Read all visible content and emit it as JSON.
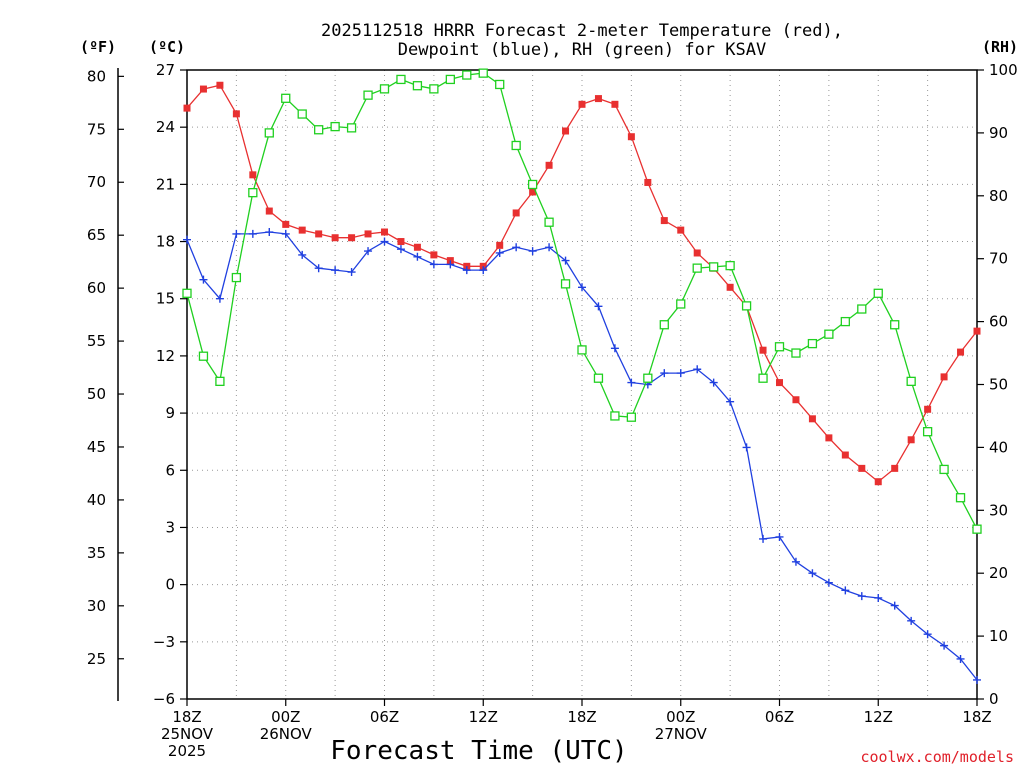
{
  "chart_data": {
    "type": "line",
    "title_lines": [
      "2025112518 HRRR Forecast 2-meter Temperature (red),",
      "Dewpoint (blue), RH (green) for KSAV"
    ],
    "xlabel": "Forecast Time (UTC)",
    "credit": "coolwx.com/models",
    "units": {
      "fahrenheit": "(ºF)",
      "celsius": "(ºC)",
      "rh": "(RH)"
    },
    "x_range_hours": [
      0,
      48
    ],
    "celsius_axis": {
      "ylim": [
        -6,
        27
      ],
      "ticks": [
        27,
        24,
        21,
        18,
        15,
        12,
        9,
        6,
        3,
        0,
        -3,
        -6
      ]
    },
    "fahrenheit_axis": {
      "ticks": [
        80,
        75,
        70,
        65,
        60,
        55,
        50,
        45,
        40,
        35,
        30,
        25
      ]
    },
    "rh_axis": {
      "ylim": [
        0,
        100
      ],
      "ticks": [
        100,
        90,
        80,
        70,
        60,
        50,
        40,
        30,
        20,
        10,
        0
      ]
    },
    "x_ticks": [
      {
        "hour": 0,
        "lines": [
          "18Z",
          "25NOV",
          "2025"
        ]
      },
      {
        "hour": 6,
        "lines": [
          "00Z",
          "26NOV"
        ]
      },
      {
        "hour": 12,
        "lines": [
          "06Z"
        ]
      },
      {
        "hour": 18,
        "lines": [
          "12Z"
        ]
      },
      {
        "hour": 24,
        "lines": [
          "18Z"
        ]
      },
      {
        "hour": 30,
        "lines": [
          "00Z",
          "27NOV"
        ]
      },
      {
        "hour": 36,
        "lines": [
          "06Z"
        ]
      },
      {
        "hour": 42,
        "lines": [
          "12Z"
        ]
      },
      {
        "hour": 48,
        "lines": [
          "18Z"
        ]
      }
    ],
    "series": [
      {
        "name": "Temperature",
        "color": "#e83030",
        "axis": "celsius",
        "marker": "filled-square",
        "values": [
          25.0,
          26.0,
          26.2,
          24.7,
          21.5,
          19.6,
          18.9,
          18.6,
          18.4,
          18.2,
          18.2,
          18.4,
          18.5,
          18.0,
          17.7,
          17.3,
          17.0,
          16.7,
          16.7,
          17.8,
          19.5,
          20.6,
          22.0,
          23.8,
          25.2,
          25.5,
          25.2,
          23.5,
          21.1,
          19.1,
          18.6,
          17.4,
          16.6,
          15.6,
          14.6,
          12.3,
          10.6,
          9.7,
          8.7,
          7.7,
          6.8,
          6.1,
          5.4,
          6.1,
          7.6,
          9.2,
          10.9,
          12.2,
          13.3
        ]
      },
      {
        "name": "Dewpoint",
        "color": "#2040e0",
        "axis": "celsius",
        "marker": "plus",
        "values": [
          18.1,
          16.0,
          15.0,
          18.4,
          18.4,
          18.5,
          18.4,
          17.3,
          16.6,
          16.5,
          16.4,
          17.5,
          18.0,
          17.6,
          17.2,
          16.8,
          16.8,
          16.5,
          16.5,
          17.4,
          17.7,
          17.5,
          17.7,
          17.0,
          15.6,
          14.6,
          12.4,
          10.6,
          10.5,
          11.1,
          11.1,
          11.3,
          10.6,
          9.6,
          7.2,
          2.4,
          2.5,
          1.2,
          0.6,
          0.1,
          -0.3,
          -0.6,
          -0.7,
          -1.1,
          -1.9,
          -2.6,
          -3.2,
          -3.9,
          -5.0
        ]
      },
      {
        "name": "RH",
        "color": "#20d020",
        "axis": "rh",
        "marker": "open-square",
        "values": [
          64.5,
          54.5,
          50.5,
          67.0,
          80.5,
          90.0,
          95.5,
          93.0,
          90.5,
          91.0,
          90.8,
          96.0,
          97.0,
          98.5,
          97.5,
          97.0,
          98.5,
          99.2,
          99.5,
          97.7,
          88.0,
          81.8,
          75.8,
          66.0,
          55.5,
          51.0,
          45.0,
          44.8,
          51.0,
          59.5,
          62.8,
          68.5,
          68.7,
          68.9,
          62.5,
          51.0,
          56.0,
          55.0,
          56.5,
          58.0,
          60.0,
          62.0,
          64.5,
          59.5,
          50.5,
          42.5,
          36.5,
          32.0,
          27.0
        ]
      }
    ]
  }
}
